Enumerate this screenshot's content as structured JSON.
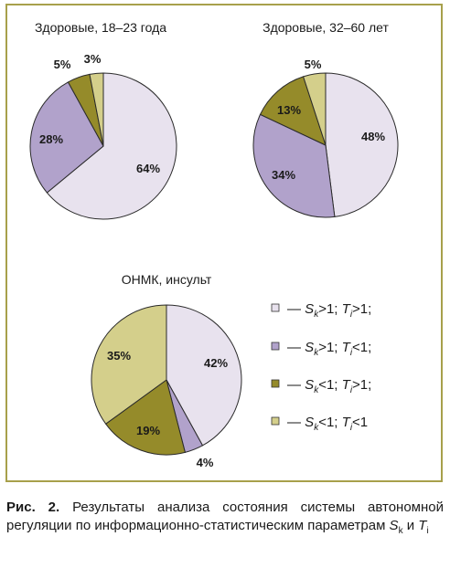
{
  "chart_data": [
    {
      "type": "pie",
      "title": "Здоровые, 18–23 года",
      "series": [
        {
          "name": "Sk>1; Ti>1",
          "value": 64
        },
        {
          "name": "Sk>1; Ti<1",
          "value": 28
        },
        {
          "name": "Sk<1; Ti>1",
          "value": 5
        },
        {
          "name": "Sk<1; Ti<1",
          "value": 3
        }
      ]
    },
    {
      "type": "pie",
      "title": "Здоровые, 32–60 лет",
      "series": [
        {
          "name": "Sk>1; Ti>1",
          "value": 48
        },
        {
          "name": "Sk>1; Ti<1",
          "value": 34
        },
        {
          "name": "Sk<1; Ti>1",
          "value": 13
        },
        {
          "name": "Sk<1; Ti<1",
          "value": 5
        }
      ]
    },
    {
      "type": "pie",
      "title": "ОНМК, инсульт",
      "series": [
        {
          "name": "Sk>1; Ti>1",
          "value": 42
        },
        {
          "name": "Sk>1; Ti<1",
          "value": 4
        },
        {
          "name": "Sk<1; Ti>1",
          "value": 19
        },
        {
          "name": "Sk<1; Ti<1",
          "value": 35
        }
      ]
    }
  ],
  "colors": [
    "#e8e2ee",
    "#b1a2cb",
    "#958b2a",
    "#d4cf8b"
  ],
  "legend": [
    {
      "dash": "—",
      "s_var": "S",
      "s_sub": "k",
      "s_op": ">1;",
      "t_var": "T",
      "t_sub": "i",
      "t_op": ">1;"
    },
    {
      "dash": "—",
      "s_var": "S",
      "s_sub": "k",
      "s_op": ">1;",
      "t_var": "T",
      "t_sub": "i",
      "t_op": "<1;"
    },
    {
      "dash": "—",
      "s_var": "S",
      "s_sub": "k",
      "s_op": "<1;",
      "t_var": "T",
      "t_sub": "i",
      "t_op": ">1;"
    },
    {
      "dash": "—",
      "s_var": "S",
      "s_sub": "k",
      "s_op": "<1;",
      "t_var": "T",
      "t_sub": "i",
      "t_op": "<1"
    }
  ],
  "caption": {
    "label": "Рис. 2.",
    "text": " Результаты анализа состояния системы автономной регуляции по информационно-статистическим параметрам ",
    "var1": "S",
    "sub1": "k",
    "conj": " и ",
    "var2": "T",
    "sub2": "i"
  }
}
